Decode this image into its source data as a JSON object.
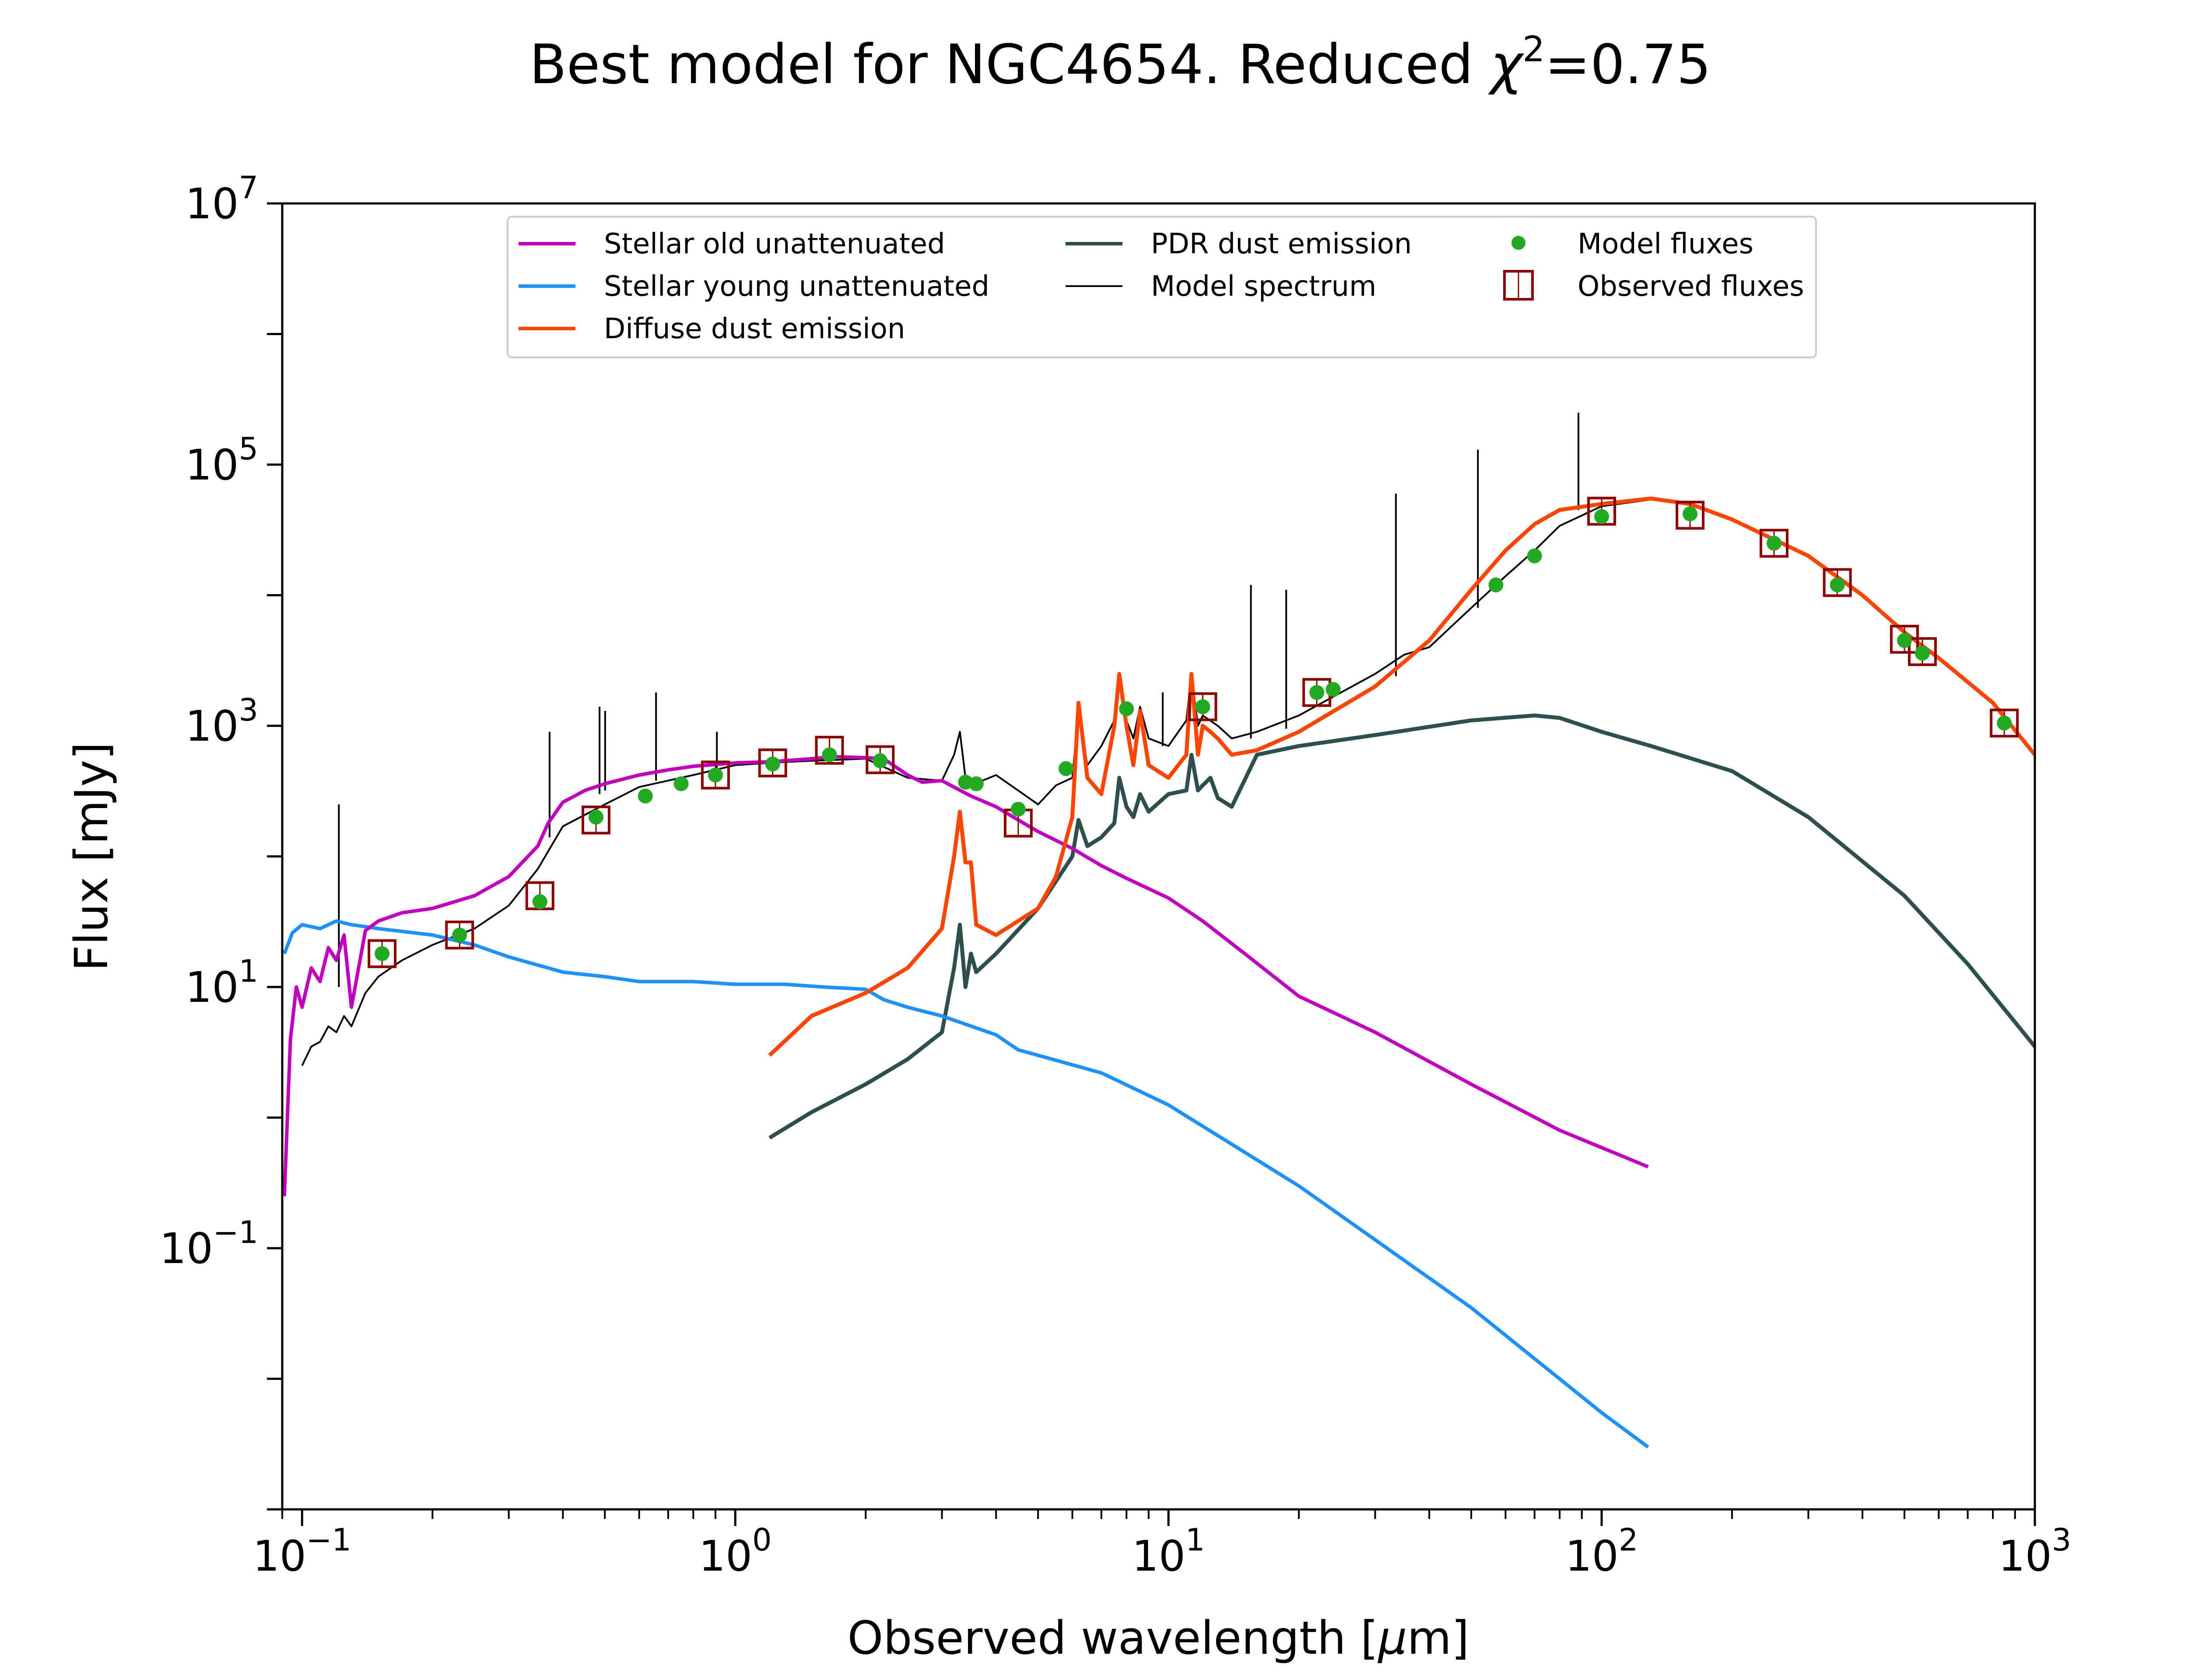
{
  "chart_data": {
    "type": "line",
    "title": "Best model for NGC4654. Reduced χ²=0.75",
    "title_parts": {
      "prefix": "Best model for NGC4654. Reduced ",
      "symbol": "χ",
      "exponent": "2",
      "suffix": "=0.75"
    },
    "xlabel": "Observed wavelength [μm]",
    "xlabel_parts": {
      "prefix": "Observed wavelength [",
      "symbol": "μ",
      "suffix": "m]"
    },
    "ylabel": "Flux [mJy]",
    "xscale": "log",
    "yscale": "log",
    "xlim": [
      0.09,
      1000
    ],
    "ylim": [
      0.001,
      10000000
    ],
    "x_ticks": [
      {
        "value": 0.1,
        "base": "10",
        "exp": "−1"
      },
      {
        "value": 1,
        "base": "10",
        "exp": "0"
      },
      {
        "value": 10,
        "base": "10",
        "exp": "1"
      },
      {
        "value": 100,
        "base": "10",
        "exp": "2"
      },
      {
        "value": 1000,
        "base": "10",
        "exp": "3"
      }
    ],
    "y_ticks": [
      {
        "value": 0.1,
        "base": "10",
        "exp": "−1"
      },
      {
        "value": 10,
        "base": "10",
        "exp": "1"
      },
      {
        "value": 1000,
        "base": "10",
        "exp": "3"
      },
      {
        "value": 100000,
        "base": "10",
        "exp": "5"
      },
      {
        "value": 10000000,
        "base": "10",
        "exp": "7"
      }
    ],
    "legend_position": "top-center",
    "legend_entries": [
      {
        "key": "stellar_old",
        "label": "Stellar old unattenuated"
      },
      {
        "key": "stellar_young",
        "label": "Stellar young unattenuated"
      },
      {
        "key": "diffuse_dust",
        "label": "Diffuse dust emission"
      },
      {
        "key": "pdr_dust",
        "label": "PDR dust emission"
      },
      {
        "key": "model_spectrum",
        "label": "Model spectrum"
      },
      {
        "key": "model_fluxes",
        "label": "Model fluxes"
      },
      {
        "key": "observed_fluxes",
        "label": "Observed fluxes"
      }
    ],
    "series": [
      {
        "key": "stellar_old",
        "name": "Stellar old unattenuated",
        "color": "#bf00bf",
        "x": [
          0.091,
          0.094,
          0.097,
          0.1,
          0.105,
          0.11,
          0.115,
          0.12,
          0.125,
          0.13,
          0.14,
          0.15,
          0.17,
          0.2,
          0.25,
          0.3,
          0.35,
          0.37,
          0.4,
          0.45,
          0.5,
          0.6,
          0.7,
          0.8,
          1.0,
          1.2,
          1.5,
          1.7,
          2.0,
          2.2,
          2.5,
          2.7,
          3.0,
          3.5,
          4.0,
          4.5,
          5,
          6,
          7,
          8,
          10,
          12,
          15,
          20,
          30,
          50,
          80,
          128
        ],
        "y": [
          0.25,
          4,
          10,
          7,
          14,
          11,
          20,
          16,
          25,
          7,
          27,
          32,
          37,
          40,
          50,
          70,
          120,
          180,
          260,
          320,
          360,
          420,
          460,
          490,
          520,
          530,
          560,
          580,
          570,
          560,
          420,
          370,
          380,
          290,
          240,
          190,
          155,
          115,
          85,
          68,
          48,
          32,
          18,
          8.5,
          4.5,
          1.8,
          0.8,
          0.42
        ]
      },
      {
        "key": "stellar_young",
        "name": "Stellar young unattenuated",
        "color": "#1e90ff",
        "x": [
          0.091,
          0.095,
          0.1,
          0.11,
          0.12,
          0.13,
          0.15,
          0.2,
          0.25,
          0.3,
          0.4,
          0.5,
          0.6,
          0.8,
          1.0,
          1.3,
          1.6,
          2.0,
          2.2,
          2.5,
          3.0,
          4.0,
          4.5,
          5,
          7,
          10,
          20,
          50,
          100,
          128
        ],
        "y": [
          18,
          26,
          30,
          28,
          32,
          30,
          28,
          25,
          21,
          17,
          13,
          12,
          11,
          11,
          10.5,
          10.5,
          10,
          9.6,
          8,
          7,
          6,
          4.3,
          3.3,
          3.0,
          2.2,
          1.25,
          0.3,
          0.035,
          0.0055,
          0.003
        ]
      },
      {
        "key": "diffuse_dust",
        "name": "Diffuse dust emission",
        "color": "#ff4500",
        "x": [
          1.2,
          1.5,
          2.0,
          2.5,
          3.0,
          3.2,
          3.3,
          3.4,
          3.5,
          3.6,
          4.0,
          5.0,
          5.5,
          6.0,
          6.2,
          6.5,
          7.0,
          7.5,
          7.7,
          8.0,
          8.3,
          8.6,
          9.0,
          10.0,
          11.0,
          11.3,
          11.7,
          12.0,
          12.5,
          13,
          14,
          16,
          20,
          30,
          40,
          50,
          60,
          70,
          80,
          100,
          130,
          160,
          200,
          300,
          400,
          500,
          600,
          800,
          1000
        ],
        "y": [
          3,
          6,
          9,
          14,
          28,
          100,
          220,
          90,
          90,
          30,
          25,
          40,
          70,
          200,
          1500,
          400,
          300,
          1000,
          2500,
          1000,
          500,
          1300,
          500,
          400,
          600,
          2500,
          600,
          1000,
          900,
          800,
          600,
          650,
          900,
          2000,
          4500,
          11000,
          22000,
          35000,
          45000,
          50000,
          55000,
          50000,
          38000,
          20000,
          10000,
          5200,
          3300,
          1500,
          600
        ]
      },
      {
        "key": "pdr_dust",
        "name": "PDR dust emission",
        "color": "#2f4f4f",
        "x": [
          1.2,
          1.5,
          2.0,
          2.5,
          3.0,
          3.2,
          3.3,
          3.4,
          3.5,
          3.6,
          4.0,
          5.0,
          6.0,
          6.2,
          6.5,
          7.0,
          7.5,
          7.7,
          8.0,
          8.3,
          8.6,
          9.0,
          10.0,
          11.0,
          11.3,
          11.7,
          12.0,
          12.5,
          13,
          14,
          16,
          20,
          30,
          50,
          70,
          80,
          100,
          130,
          200,
          300,
          500,
          700,
          1000
        ],
        "y": [
          0.7,
          1.1,
          1.8,
          2.8,
          4.5,
          14,
          30,
          10,
          18,
          13,
          18,
          40,
          100,
          190,
          120,
          140,
          180,
          400,
          240,
          200,
          300,
          220,
          300,
          320,
          600,
          320,
          350,
          400,
          280,
          240,
          600,
          700,
          850,
          1100,
          1200,
          1150,
          900,
          700,
          450,
          200,
          50,
          15,
          3.5
        ]
      },
      {
        "key": "model_spectrum",
        "name": "Model spectrum",
        "color": "#000000",
        "x": [
          0.1,
          0.105,
          0.11,
          0.115,
          0.12,
          0.125,
          0.13,
          0.14,
          0.15,
          0.17,
          0.2,
          0.25,
          0.3,
          0.35,
          0.4,
          0.5,
          0.6,
          0.8,
          1.0,
          1.2,
          1.5,
          2.0,
          2.5,
          3.0,
          3.2,
          3.3,
          3.4,
          3.5,
          4.0,
          5.0,
          5.5,
          6.0,
          6.2,
          6.5,
          7.0,
          7.5,
          7.7,
          8.0,
          8.3,
          8.6,
          9.0,
          10.0,
          11.0,
          11.3,
          11.7,
          12.0,
          13,
          14,
          16,
          20,
          30,
          35,
          40,
          50,
          60,
          70,
          80,
          100,
          130,
          160,
          200,
          300,
          400,
          500,
          600,
          800,
          1000
        ],
        "y": [
          2.5,
          3.5,
          3.8,
          5,
          4.5,
          6,
          5,
          9,
          12,
          16,
          21,
          28,
          42,
          80,
          170,
          250,
          340,
          420,
          500,
          520,
          540,
          560,
          400,
          380,
          600,
          900,
          400,
          350,
          420,
          250,
          350,
          400,
          1300,
          500,
          700,
          1100,
          2500,
          1100,
          800,
          1400,
          800,
          700,
          1100,
          2500,
          1000,
          1200,
          1000,
          800,
          900,
          1200,
          2500,
          3500,
          4000,
          8000,
          14000,
          22000,
          34000,
          48000,
          54000,
          50000,
          38000,
          20000,
          10000,
          5200,
          3300,
          1500,
          600
        ]
      }
    ],
    "emission_lines": [
      {
        "x": 0.1216,
        "base": 10,
        "peak": 250
      },
      {
        "x": 0.3727,
        "base": 140,
        "peak": 900
      },
      {
        "x": 0.4861,
        "base": 300,
        "peak": 1400
      },
      {
        "x": 0.5007,
        "base": 320,
        "peak": 1300
      },
      {
        "x": 0.6563,
        "base": 380,
        "peak": 1800
      },
      {
        "x": 0.9069,
        "base": 460,
        "peak": 900
      },
      {
        "x": 9.7,
        "base": 700,
        "peak": 1800
      },
      {
        "x": 15.5,
        "base": 800,
        "peak": 12000
      },
      {
        "x": 18.7,
        "base": 950,
        "peak": 11000
      },
      {
        "x": 33.5,
        "base": 2400,
        "peak": 60000
      },
      {
        "x": 51.8,
        "base": 8000,
        "peak": 130000
      },
      {
        "x": 88.4,
        "base": 45000,
        "peak": 250000
      }
    ],
    "model_fluxes": {
      "color": "#22aa22",
      "x": [
        0.153,
        0.231,
        0.354,
        0.477,
        0.62,
        0.75,
        0.9,
        1.22,
        1.65,
        2.16,
        3.4,
        3.6,
        4.5,
        5.8,
        8.0,
        12,
        22,
        24,
        57,
        70,
        100,
        160,
        250,
        350,
        500,
        550,
        850
      ],
      "y": [
        18,
        25,
        45,
        200,
        290,
        360,
        420,
        510,
        600,
        540,
        370,
        360,
        230,
        470,
        1350,
        1400,
        1800,
        1900,
        12000,
        20000,
        40000,
        42000,
        25000,
        12000,
        4500,
        3600,
        1050
      ]
    },
    "observed_fluxes": {
      "color": "#8b0000",
      "x": [
        0.153,
        0.231,
        0.354,
        0.477,
        0.9,
        1.22,
        1.65,
        2.16,
        4.5,
        12,
        22,
        100,
        160,
        250,
        350,
        500,
        550,
        850
      ],
      "y": [
        18,
        25,
        50,
        190,
        420,
        520,
        650,
        550,
        180,
        1400,
        1800,
        44000,
        41000,
        25000,
        12500,
        4600,
        3700,
        1050
      ]
    }
  }
}
